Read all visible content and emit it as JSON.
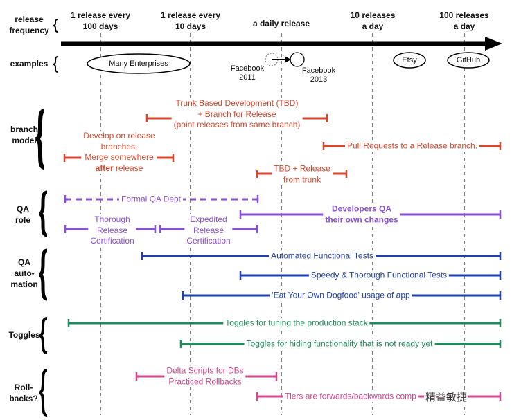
{
  "colors": {
    "branch": "#d9452a",
    "qa_role": "#8a4fd6",
    "qa_auto": "#1f3fb0",
    "toggles": "#1f8a5a",
    "rollbacks": "#d6458f",
    "axis": "#000000"
  },
  "frequencies": [
    "1 release every\n100 days",
    "1 release every\n10 days",
    "a daily release",
    "10 releases\na day",
    "100 releases\na day"
  ],
  "row_labels": {
    "frequency": "release\nfrequency",
    "examples": "examples",
    "branch": "branch\nmodel",
    "qa_role": "QA\nrole",
    "qa_auto": "QA\nauto-\nmation",
    "toggles": "Toggles",
    "rollbacks": "Roll-\nbacks?"
  },
  "examples": {
    "enterprises": "Many Enterprises",
    "fb2011": "Facebook\n2011",
    "fb2013": "Facebook\n2013",
    "etsy": "Etsy",
    "github": "GitHub"
  },
  "spans": [
    {
      "group": "branch",
      "label": "Trunk Based Development (TBD)\n+ Branch for Release\n(point releases from same branch)"
    },
    {
      "group": "branch",
      "label": "Develop on release\nbranches;\nMerge somewhere\nafter release"
    },
    {
      "group": "branch",
      "label": "Pull Requests to a Release branch."
    },
    {
      "group": "branch",
      "label": "TBD + Release\nfrom trunk"
    },
    {
      "group": "qa_role",
      "label": "Formal QA Dept",
      "dashed": true
    },
    {
      "group": "qa_role",
      "label": "Developers QA\ntheir own changes",
      "bold": true
    },
    {
      "group": "qa_role",
      "label": "Thorough\nRelease\nCertification"
    },
    {
      "group": "qa_role",
      "label": "Expedited\nRelease\nCertification"
    },
    {
      "group": "qa_auto",
      "label": "Automated Functional Tests"
    },
    {
      "group": "qa_auto",
      "label": "Speedy & Thorough Functional Tests"
    },
    {
      "group": "qa_auto",
      "label": "'Eat Your Own Dogfood' usage of app"
    },
    {
      "group": "toggles",
      "label": "Toggles for tuning the production stack"
    },
    {
      "group": "toggles",
      "label": "Toggles for hiding functionality that is not ready yet"
    },
    {
      "group": "rollbacks",
      "label": "Delta Scripts for DBs\nPracticed Rollbacks"
    },
    {
      "group": "rollbacks",
      "label": "Tiers are forwards/backwards comp"
    }
  ],
  "watermark": "精益敏捷"
}
